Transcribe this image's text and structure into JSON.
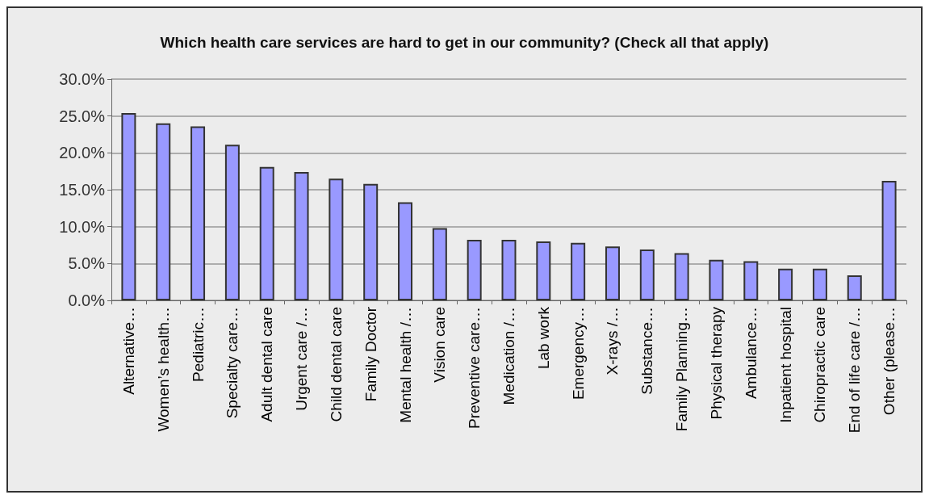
{
  "chart_data": {
    "type": "bar",
    "title": "Which health care services are hard to get in our community? (Check all that apply)",
    "categories": [
      "Alternative…",
      "Women’s health…",
      "Pediatric…",
      "Specialty care…",
      "Adult dental care",
      "Urgent care /…",
      "Child dental care",
      "Family Doctor",
      "Mental health /…",
      "Vision care",
      "Preventive care…",
      "Medication /…",
      "Lab work",
      "Emergency…",
      "X-rays /…",
      "Substance…",
      "Family Planning…",
      "Physical therapy",
      "Ambulance…",
      "Inpatient hospital",
      "Chiropractic care",
      "End of life care /…",
      "Other (please…"
    ],
    "values": [
      25.4,
      24.0,
      23.6,
      21.1,
      18.1,
      17.4,
      16.5,
      15.8,
      13.3,
      9.8,
      8.2,
      8.2,
      8.0,
      7.8,
      7.3,
      6.9,
      6.4,
      5.5,
      5.3,
      4.3,
      4.3,
      3.4,
      16.2
    ],
    "color": "#9999ff",
    "ylim": [
      0,
      30
    ],
    "yticks": [
      {
        "value": 0,
        "label": "0.0%"
      },
      {
        "value": 5,
        "label": "5.0%"
      },
      {
        "value": 10,
        "label": "10.0%"
      },
      {
        "value": 15,
        "label": "15.0%"
      },
      {
        "value": 20,
        "label": "20.0%"
      },
      {
        "value": 25,
        "label": "25.0%"
      },
      {
        "value": 30,
        "label": "30.0%"
      }
    ],
    "grid": "y"
  }
}
